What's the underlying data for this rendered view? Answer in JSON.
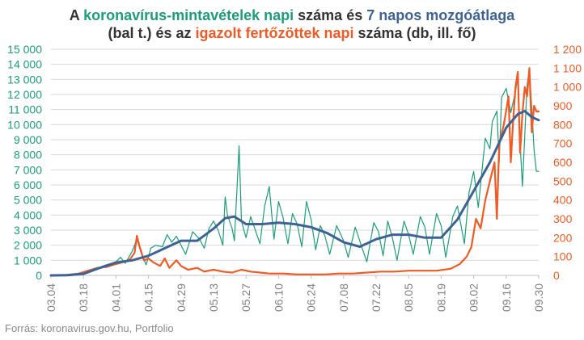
{
  "title": {
    "p1": "A ",
    "green": "koronavírus-mintavételek napi",
    "p2": " száma és ",
    "blue": "7 napos mozgóátlaga",
    "line2a": "(bal t.) és az ",
    "orange": "igazolt fertőzöttek napi",
    "line2b": " száma (db, ill. fő)"
  },
  "source": "Forrás: koronavirus.gov.hu, Portfolio",
  "colors": {
    "tests": "#1a9e7a",
    "avg": "#3d6396",
    "cases": "#f15a22",
    "grid": "#d9d9d9",
    "xtick": "#808080"
  },
  "chart_data": {
    "type": "line",
    "title": "A koronavírus-mintavételek napi száma és 7 napos mozgóátlaga (bal t.) és az igazolt fertőzöttek napi száma (db, ill. fő)",
    "x_tick_labels": [
      "03.04",
      "03.18",
      "04.01",
      "04.15",
      "04.29",
      "05.13",
      "05.27",
      "06.10",
      "06.24",
      "07.08",
      "07.22",
      "08.05",
      "08.19",
      "09.02",
      "09.16",
      "09.30"
    ],
    "x_range": [
      "03.04",
      "09.30"
    ],
    "y_left": {
      "ticks": [
        0,
        1000,
        2000,
        3000,
        4000,
        5000,
        6000,
        7000,
        8000,
        9000,
        10000,
        11000,
        12000,
        13000,
        14000,
        15000
      ],
      "tick_labels": [
        "0",
        "1 000",
        "2 000",
        "3 000",
        "4 000",
        "5 000",
        "6 000",
        "7 000",
        "8 000",
        "9 000",
        "10 000",
        "11 000",
        "12 000",
        "13 000",
        "14 000",
        "15 000"
      ],
      "ylim": [
        0,
        15000
      ],
      "color": "#1a9e7a"
    },
    "y_right": {
      "ticks": [
        0,
        100,
        200,
        300,
        400,
        500,
        600,
        700,
        800,
        900,
        1000,
        1100,
        1200
      ],
      "tick_labels": [
        "0",
        "100",
        "200",
        "300",
        "400",
        "500",
        "600",
        "700",
        "800",
        "900",
        "1 000",
        "1 100",
        "1 200"
      ],
      "ylim": [
        0,
        1200
      ],
      "color": "#f15a22"
    },
    "grid": true,
    "series": [
      {
        "name": "koronavírus-mintavételek napi száma",
        "axis": "left",
        "style": "thin",
        "keypoints": [
          [
            "03.04",
            0
          ],
          [
            "03.11",
            20
          ],
          [
            "03.14",
            80
          ],
          [
            "03.18",
            150
          ],
          [
            "03.22",
            350
          ],
          [
            "03.26",
            600
          ],
          [
            "03.29",
            750
          ],
          [
            "04.01",
            900
          ],
          [
            "04.03",
            1200
          ],
          [
            "04.05",
            800
          ],
          [
            "04.08",
            1600
          ],
          [
            "04.10",
            2400
          ],
          [
            "04.12",
            1400
          ],
          [
            "04.14",
            700
          ],
          [
            "04.16",
            1800
          ],
          [
            "04.18",
            2000
          ],
          [
            "04.21",
            1900
          ],
          [
            "04.23",
            2700
          ],
          [
            "04.25",
            2200
          ],
          [
            "04.27",
            2600
          ],
          [
            "04.29",
            2000
          ],
          [
            "05.01",
            1400
          ],
          [
            "05.04",
            2900
          ],
          [
            "05.07",
            2400
          ],
          [
            "05.09",
            1800
          ],
          [
            "05.11",
            3100
          ],
          [
            "05.13",
            3600
          ],
          [
            "05.15",
            3000
          ],
          [
            "05.17",
            2000
          ],
          [
            "05.18",
            5200
          ],
          [
            "05.19",
            4000
          ],
          [
            "05.21",
            3100
          ],
          [
            "05.22",
            2300
          ],
          [
            "05.24",
            8600
          ],
          [
            "05.25",
            3600
          ],
          [
            "05.27",
            2500
          ],
          [
            "05.29",
            3900
          ],
          [
            "05.31",
            3000
          ],
          [
            "06.02",
            2100
          ],
          [
            "06.04",
            4600
          ],
          [
            "06.06",
            5900
          ],
          [
            "06.08",
            2400
          ],
          [
            "06.10",
            4900
          ],
          [
            "06.12",
            3800
          ],
          [
            "06.14",
            2100
          ],
          [
            "06.16",
            4100
          ],
          [
            "06.18",
            3400
          ],
          [
            "06.20",
            1900
          ],
          [
            "06.22",
            4900
          ],
          [
            "06.24",
            3700
          ],
          [
            "06.26",
            1700
          ],
          [
            "06.28",
            3300
          ],
          [
            "06.30",
            2600
          ],
          [
            "07.02",
            1400
          ],
          [
            "07.05",
            3300
          ],
          [
            "07.08",
            2300
          ],
          [
            "07.10",
            1200
          ],
          [
            "07.13",
            3200
          ],
          [
            "07.16",
            1800
          ],
          [
            "07.18",
            900
          ],
          [
            "07.21",
            3500
          ],
          [
            "07.23",
            2900
          ],
          [
            "07.25",
            1300
          ],
          [
            "07.27",
            3600
          ],
          [
            "07.29",
            2500
          ],
          [
            "07.31",
            1000
          ],
          [
            "08.03",
            3600
          ],
          [
            "08.05",
            2700
          ],
          [
            "08.07",
            1400
          ],
          [
            "08.10",
            3900
          ],
          [
            "08.12",
            3200
          ],
          [
            "08.14",
            1400
          ],
          [
            "08.17",
            4100
          ],
          [
            "08.19",
            3300
          ],
          [
            "08.21",
            1200
          ],
          [
            "08.24",
            3900
          ],
          [
            "08.26",
            4600
          ],
          [
            "08.29",
            2100
          ],
          [
            "08.31",
            5500
          ],
          [
            "09.02",
            6900
          ],
          [
            "09.04",
            4500
          ],
          [
            "09.06",
            7600
          ],
          [
            "09.07",
            9100
          ],
          [
            "09.09",
            8400
          ],
          [
            "09.10",
            10200
          ],
          [
            "09.12",
            10900
          ],
          [
            "09.13",
            7500
          ],
          [
            "09.14",
            11800
          ],
          [
            "09.16",
            12400
          ],
          [
            "09.18",
            10800
          ],
          [
            "09.20",
            12200
          ],
          [
            "09.21",
            13200
          ],
          [
            "09.22",
            8700
          ],
          [
            "09.23",
            5900
          ],
          [
            "09.25",
            12600
          ],
          [
            "09.26",
            13700
          ],
          [
            "09.27",
            11100
          ],
          [
            "09.28",
            8300
          ],
          [
            "09.29",
            6900
          ],
          [
            "09.30",
            6900
          ]
        ]
      },
      {
        "name": "7 napos mozgóátlaga",
        "axis": "left",
        "style": "thick",
        "keypoints": [
          [
            "03.04",
            0
          ],
          [
            "03.11",
            10
          ],
          [
            "03.18",
            100
          ],
          [
            "03.25",
            500
          ],
          [
            "04.01",
            850
          ],
          [
            "04.08",
            1000
          ],
          [
            "04.15",
            1300
          ],
          [
            "04.22",
            1800
          ],
          [
            "04.29",
            2300
          ],
          [
            "05.06",
            2300
          ],
          [
            "05.13",
            3100
          ],
          [
            "05.18",
            3800
          ],
          [
            "05.22",
            3900
          ],
          [
            "05.27",
            3400
          ],
          [
            "06.03",
            3400
          ],
          [
            "06.10",
            3500
          ],
          [
            "06.17",
            3400
          ],
          [
            "06.24",
            3200
          ],
          [
            "07.01",
            2800
          ],
          [
            "07.08",
            2200
          ],
          [
            "07.15",
            1900
          ],
          [
            "07.22",
            2400
          ],
          [
            "07.29",
            2700
          ],
          [
            "08.05",
            2700
          ],
          [
            "08.12",
            2500
          ],
          [
            "08.19",
            2500
          ],
          [
            "08.26",
            3700
          ],
          [
            "09.02",
            5600
          ],
          [
            "09.09",
            7500
          ],
          [
            "09.16",
            9800
          ],
          [
            "09.21",
            10700
          ],
          [
            "09.24",
            10900
          ],
          [
            "09.27",
            10500
          ],
          [
            "09.30",
            10300
          ]
        ]
      },
      {
        "name": "igazolt fertőzöttek napi száma",
        "axis": "right",
        "style": "medium",
        "keypoints": [
          [
            "03.04",
            0
          ],
          [
            "03.11",
            3
          ],
          [
            "03.16",
            10
          ],
          [
            "03.20",
            25
          ],
          [
            "03.24",
            40
          ],
          [
            "03.28",
            45
          ],
          [
            "04.01",
            60
          ],
          [
            "04.04",
            70
          ],
          [
            "04.07",
            85
          ],
          [
            "04.09",
            120
          ],
          [
            "04.10",
            210
          ],
          [
            "04.11",
            160
          ],
          [
            "04.13",
            80
          ],
          [
            "04.15",
            90
          ],
          [
            "04.17",
            70
          ],
          [
            "04.20",
            50
          ],
          [
            "04.22",
            90
          ],
          [
            "04.24",
            40
          ],
          [
            "04.27",
            80
          ],
          [
            "04.29",
            50
          ],
          [
            "05.02",
            30
          ],
          [
            "05.06",
            40
          ],
          [
            "05.09",
            20
          ],
          [
            "05.13",
            30
          ],
          [
            "05.17",
            20
          ],
          [
            "05.21",
            15
          ],
          [
            "05.25",
            30
          ],
          [
            "05.29",
            20
          ],
          [
            "06.02",
            15
          ],
          [
            "06.06",
            10
          ],
          [
            "06.12",
            10
          ],
          [
            "06.18",
            5
          ],
          [
            "06.24",
            5
          ],
          [
            "06.30",
            5
          ],
          [
            "07.06",
            10
          ],
          [
            "07.12",
            10
          ],
          [
            "07.18",
            15
          ],
          [
            "07.24",
            20
          ],
          [
            "07.30",
            20
          ],
          [
            "08.05",
            25
          ],
          [
            "08.11",
            25
          ],
          [
            "08.17",
            25
          ],
          [
            "08.23",
            35
          ],
          [
            "08.27",
            60
          ],
          [
            "08.30",
            100
          ],
          [
            "09.01",
            150
          ],
          [
            "09.03",
            300
          ],
          [
            "09.05",
            250
          ],
          [
            "09.07",
            400
          ],
          [
            "09.09",
            500
          ],
          [
            "09.11",
            600
          ],
          [
            "09.12",
            300
          ],
          [
            "09.13",
            700
          ],
          [
            "09.15",
            800
          ],
          [
            "09.17",
            950
          ],
          [
            "09.18",
            600
          ],
          [
            "09.19",
            820
          ],
          [
            "09.20",
            1000
          ],
          [
            "09.21",
            1080
          ],
          [
            "09.22",
            650
          ],
          [
            "09.23",
            860
          ],
          [
            "09.24",
            1000
          ],
          [
            "09.25",
            950
          ],
          [
            "09.26",
            1100
          ],
          [
            "09.27",
            760
          ],
          [
            "09.28",
            900
          ],
          [
            "09.29",
            870
          ],
          [
            "09.30",
            870
          ]
        ]
      }
    ]
  }
}
